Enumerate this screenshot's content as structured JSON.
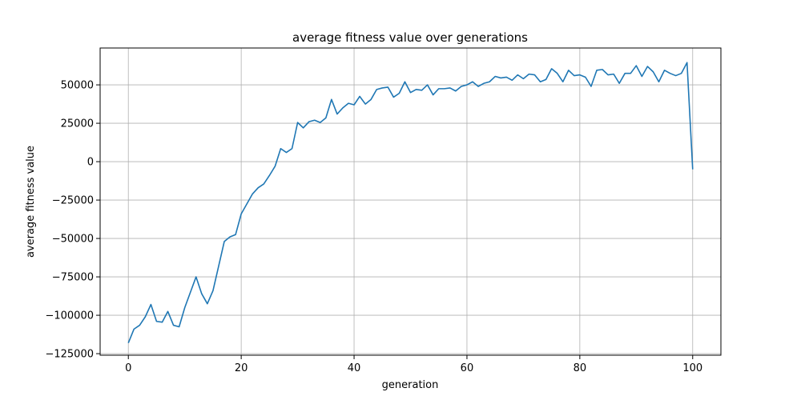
{
  "chart_data": {
    "type": "line",
    "title": "average fitness value over generations",
    "xlabel": "generation",
    "ylabel": "average fitness value",
    "xlim": [
      -5,
      105
    ],
    "ylim": [
      -126000,
      74000
    ],
    "grid": true,
    "line_color": "#1f77b4",
    "xticks": [
      0,
      20,
      40,
      60,
      80,
      100
    ],
    "yticks": [
      -125000,
      -100000,
      -75000,
      -50000,
      -25000,
      0,
      25000,
      50000
    ],
    "xtick_labels": [
      "0",
      "20",
      "40",
      "60",
      "80",
      "100"
    ],
    "ytick_labels": [
      "−125000",
      "−100000",
      "−75000",
      "−50000",
      "−25000",
      "0",
      "25000",
      "50000"
    ],
    "x": [
      0,
      1,
      2,
      3,
      4,
      5,
      6,
      7,
      8,
      9,
      10,
      11,
      12,
      13,
      14,
      15,
      16,
      17,
      18,
      19,
      20,
      21,
      22,
      23,
      24,
      25,
      26,
      27,
      28,
      29,
      30,
      31,
      32,
      33,
      34,
      35,
      36,
      37,
      38,
      39,
      40,
      41,
      42,
      43,
      44,
      45,
      46,
      47,
      48,
      49,
      50,
      51,
      52,
      53,
      54,
      55,
      56,
      57,
      58,
      59,
      60,
      61,
      62,
      63,
      64,
      65,
      66,
      67,
      68,
      69,
      70,
      71,
      72,
      73,
      74,
      75,
      76,
      77,
      78,
      79,
      80,
      81,
      82,
      83,
      84,
      85,
      86,
      87,
      88,
      89,
      90,
      91,
      92,
      93,
      94,
      95,
      96,
      97,
      98,
      99,
      100
    ],
    "y": [
      -118000,
      -109000,
      -106500,
      -101000,
      -93000,
      -104000,
      -104500,
      -97500,
      -106500,
      -107500,
      -95000,
      -85000,
      -75000,
      -86000,
      -92500,
      -84000,
      -68000,
      -52000,
      -49000,
      -47500,
      -34000,
      -27500,
      -21000,
      -17000,
      -14500,
      -9000,
      -3000,
      8500,
      6000,
      8500,
      25500,
      22000,
      26000,
      27000,
      25500,
      28500,
      40500,
      31000,
      35000,
      38000,
      37000,
      42500,
      37500,
      40500,
      47000,
      48000,
      48500,
      42000,
      44500,
      52000,
      45000,
      47000,
      46500,
      50000,
      43500,
      47500,
      47500,
      48000,
      46000,
      49000,
      50000,
      52000,
      49000,
      51000,
      52000,
      55500,
      54500,
      55000,
      53000,
      56500,
      54000,
      57000,
      56500,
      52000,
      53500,
      60500,
      57500,
      52000,
      59500,
      56000,
      56500,
      55000,
      49000,
      59500,
      60000,
      56500,
      57000,
      51000,
      57500,
      57500,
      62500,
      55500,
      62000,
      58500,
      52000,
      59500,
      57500,
      56000,
      57500,
      64500,
      -5000
    ]
  }
}
